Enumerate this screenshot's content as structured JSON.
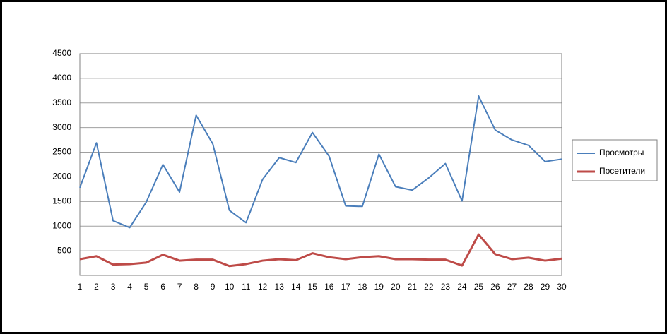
{
  "chart_data": {
    "type": "line",
    "x": [
      1,
      2,
      3,
      4,
      5,
      6,
      7,
      8,
      9,
      10,
      11,
      12,
      13,
      14,
      15,
      16,
      17,
      18,
      19,
      20,
      21,
      22,
      23,
      24,
      25,
      26,
      27,
      28,
      29,
      30
    ],
    "xlim": [
      1,
      30
    ],
    "series": [
      {
        "name": "Просмотры",
        "color": "#4a7ebb",
        "values": [
          1780,
          2690,
          1110,
          970,
          1490,
          2250,
          1690,
          3250,
          2670,
          1320,
          1070,
          1950,
          2390,
          2290,
          2900,
          2420,
          1410,
          1400,
          2460,
          1800,
          1730,
          1980,
          2270,
          1510,
          3640,
          2950,
          2750,
          2640,
          2310,
          2360
        ]
      },
      {
        "name": "Посетители",
        "color": "#be4b48",
        "values": [
          330,
          390,
          220,
          230,
          260,
          420,
          300,
          320,
          320,
          190,
          230,
          300,
          330,
          310,
          450,
          370,
          330,
          370,
          390,
          330,
          330,
          320,
          320,
          200,
          830,
          430,
          330,
          360,
          300,
          340
        ]
      }
    ],
    "ylim": [
      0,
      4500
    ],
    "yticks": [
      500,
      1000,
      1500,
      2000,
      2500,
      3000,
      3500,
      4000,
      4500
    ],
    "grid": true,
    "legend": "right"
  }
}
